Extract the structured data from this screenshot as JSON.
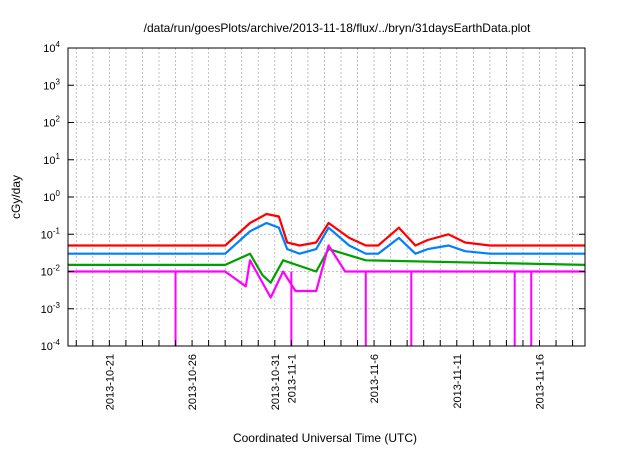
{
  "chart_data": {
    "type": "line",
    "title": "/data/run/goesPlots/archive/2013-11-18/flux/../bryn/31daysEarthData.plot",
    "xlabel": "Coordinated Universal Time (UTC)",
    "ylabel": "cGy/day",
    "yscale": "log",
    "ylim": [
      0.0001,
      10000
    ],
    "xlim": [
      "2013-10-18T12:00",
      "2013-11-18T18:00"
    ],
    "grid": true,
    "legend": "none",
    "x_tick_labels": [
      "2013-10-21",
      "2013-10-26",
      "2013-10-31",
      "2013-11-1",
      "2013-11-6",
      "2013-11-11",
      "2013-11-16"
    ],
    "x_tick_dates": [
      "2013-10-21",
      "2013-10-26",
      "2013-10-31",
      "2013-11-01",
      "2013-11-06",
      "2013-11-11",
      "2013-11-16"
    ],
    "y_ticks": [
      {
        "value": 0.0001,
        "base": "10",
        "exp": "-4"
      },
      {
        "value": 0.001,
        "base": "10",
        "exp": "-3"
      },
      {
        "value": 0.01,
        "base": "10",
        "exp": "-2"
      },
      {
        "value": 0.1,
        "base": "10",
        "exp": "-1"
      },
      {
        "value": 1,
        "base": "10",
        "exp": "0"
      },
      {
        "value": 10,
        "base": "10",
        "exp": "1"
      },
      {
        "value": 100,
        "base": "10",
        "exp": "2"
      },
      {
        "value": 1000,
        "base": "10",
        "exp": "3"
      },
      {
        "value": 10000,
        "base": "10",
        "exp": "4"
      }
    ],
    "series": [
      {
        "color": "#ff0000",
        "x": [
          "2013-10-18T12:00",
          "2013-10-23T00:00",
          "2013-10-28T00:00",
          "2013-10-29T12:00",
          "2013-10-30T12:00",
          "2013-10-31T06:00",
          "2013-10-31T18:00",
          "2013-11-01T12:00",
          "2013-11-02T12:00",
          "2013-11-03T06:00",
          "2013-11-04T12:00",
          "2013-11-05T12:00",
          "2013-11-06T06:00",
          "2013-11-07T12:00",
          "2013-11-08T12:00",
          "2013-11-09T06:00",
          "2013-11-10T12:00",
          "2013-11-11T12:00",
          "2013-11-13T00:00",
          "2013-11-16T00:00",
          "2013-11-18T18:00"
        ],
        "y": [
          0.05,
          0.05,
          0.05,
          0.2,
          0.35,
          0.3,
          0.06,
          0.05,
          0.06,
          0.2,
          0.08,
          0.05,
          0.05,
          0.15,
          0.05,
          0.07,
          0.1,
          0.06,
          0.05,
          0.05,
          0.05
        ]
      },
      {
        "color": "#0080ff",
        "x": [
          "2013-10-18T12:00",
          "2013-10-23T00:00",
          "2013-10-28T00:00",
          "2013-10-29T12:00",
          "2013-10-30T12:00",
          "2013-10-31T06:00",
          "2013-10-31T18:00",
          "2013-11-01T12:00",
          "2013-11-02T12:00",
          "2013-11-03T06:00",
          "2013-11-04T12:00",
          "2013-11-05T12:00",
          "2013-11-06T06:00",
          "2013-11-07T12:00",
          "2013-11-08T12:00",
          "2013-11-09T06:00",
          "2013-11-10T12:00",
          "2013-11-11T12:00",
          "2013-11-13T00:00",
          "2013-11-16T00:00",
          "2013-11-18T18:00"
        ],
        "y": [
          0.03,
          0.03,
          0.03,
          0.12,
          0.2,
          0.15,
          0.04,
          0.03,
          0.04,
          0.15,
          0.05,
          0.03,
          0.03,
          0.08,
          0.03,
          0.04,
          0.05,
          0.035,
          0.03,
          0.03,
          0.03
        ]
      },
      {
        "color": "#00a000",
        "x": [
          "2013-10-18T12:00",
          "2013-10-28T00:00",
          "2013-10-29T12:00",
          "2013-10-30T06:00",
          "2013-10-30T18:00",
          "2013-10-31T12:00",
          "2013-11-02T12:00",
          "2013-11-03T06:00",
          "2013-11-05T12:00",
          "2013-11-18T18:00"
        ],
        "y": [
          0.015,
          0.015,
          0.03,
          0.008,
          0.005,
          0.02,
          0.01,
          0.04,
          0.02,
          0.015
        ]
      },
      {
        "color": "#ff00ff",
        "x": [
          "2013-10-18T12:00",
          "2013-10-23T00:00",
          "2013-10-28T00:00",
          "2013-10-29T06:00",
          "2013-10-29T12:00",
          "2013-10-30T18:00",
          "2013-10-31T12:00",
          "2013-11-01T06:00",
          "2013-11-02T12:00",
          "2013-11-03T06:00",
          "2013-11-04T06:00",
          "2013-11-06T12:00",
          "2013-11-18T18:00"
        ],
        "y": [
          0.01,
          0.01,
          0.01,
          0.004,
          0.02,
          0.002,
          0.01,
          0.003,
          0.003,
          0.05,
          0.01,
          0.01,
          0.01
        ]
      }
    ],
    "dropouts": {
      "color": "#ff00ff",
      "x": [
        "2013-10-25T00:00",
        "2013-11-01T00:00",
        "2013-11-05T12:00",
        "2013-11-08T06:00",
        "2013-11-14T12:00",
        "2013-11-15T12:00"
      ],
      "y": [
        0.0001,
        0.0001,
        0.0001,
        0.0001,
        0.0001,
        0.0001
      ]
    }
  }
}
